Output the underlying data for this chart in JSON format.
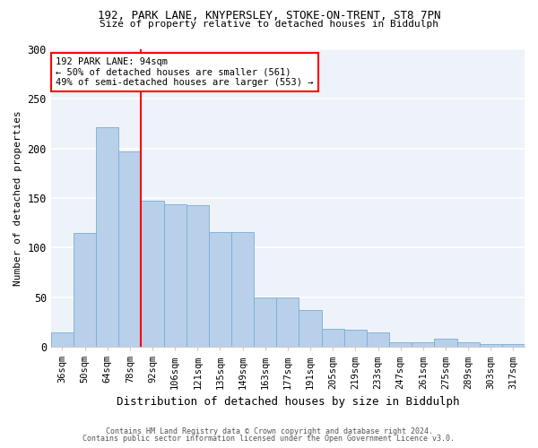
{
  "title_line1": "192, PARK LANE, KNYPERSLEY, STOKE-ON-TRENT, ST8 7PN",
  "title_line2": "Size of property relative to detached houses in Biddulph",
  "xlabel": "Distribution of detached houses by size in Biddulph",
  "ylabel": "Number of detached properties",
  "bar_color": "#b8d0ea",
  "bar_edge_color": "#7aadd4",
  "categories": [
    "36sqm",
    "50sqm",
    "64sqm",
    "78sqm",
    "92sqm",
    "106sqm",
    "121sqm",
    "135sqm",
    "149sqm",
    "163sqm",
    "177sqm",
    "191sqm",
    "205sqm",
    "219sqm",
    "233sqm",
    "247sqm",
    "261sqm",
    "275sqm",
    "289sqm",
    "303sqm",
    "317sqm"
  ],
  "values": [
    15,
    115,
    221,
    197,
    147,
    144,
    143,
    116,
    116,
    50,
    50,
    37,
    18,
    17,
    15,
    5,
    5,
    8,
    5,
    3,
    3
  ],
  "ylim": [
    0,
    300
  ],
  "yticks": [
    0,
    50,
    100,
    150,
    200,
    250,
    300
  ],
  "annotation_line1": "192 PARK LANE: 94sqm",
  "annotation_line2": "← 50% of detached houses are smaller (561)",
  "annotation_line3": "49% of semi-detached houses are larger (553) →",
  "vline_x_index": 3.5,
  "bg_color": "#eef2f9",
  "grid_color": "#ffffff",
  "footer_line1": "Contains HM Land Registry data © Crown copyright and database right 2024.",
  "footer_line2": "Contains public sector information licensed under the Open Government Licence v3.0."
}
